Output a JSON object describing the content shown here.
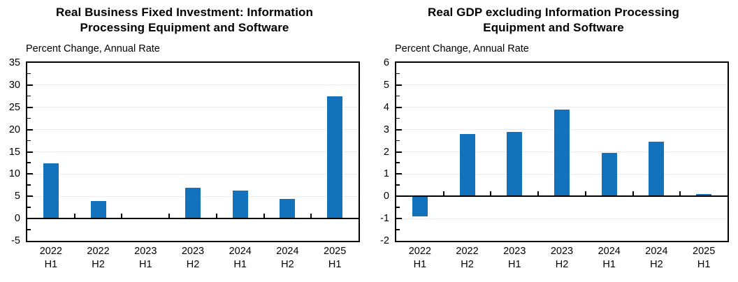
{
  "chart_data": [
    {
      "type": "bar",
      "title": "Real Business Fixed Investment: Information Processing Equipment and Software",
      "subtitle": "Percent Change, Annual Rate",
      "categories": [
        "2022 H1",
        "2022 H2",
        "2023 H1",
        "2023 H2",
        "2024 H1",
        "2024 H2",
        "2025 H1"
      ],
      "values": [
        12.4,
        3.9,
        0.0,
        7.0,
        6.3,
        4.4,
        27.4
      ],
      "xlabel": "",
      "ylabel": "",
      "ylim": [
        -5,
        35
      ],
      "ytick_step": 5,
      "minor_tick_step": 2.5,
      "grid": true,
      "legend": "none",
      "bar_color": "#1272bc",
      "axis_color": "#000000",
      "grid_color": "#ebebeb"
    },
    {
      "type": "bar",
      "title": "Real GDP excluding Information Processing Equipment and Software",
      "subtitle": "Percent Change, Annual Rate",
      "categories": [
        "2022 H1",
        "2022 H2",
        "2023 H1",
        "2023 H2",
        "2024 H1",
        "2024 H2",
        "2025 H1"
      ],
      "values": [
        -0.9,
        2.8,
        2.9,
        3.9,
        1.95,
        2.45,
        0.1
      ],
      "xlabel": "",
      "ylabel": "",
      "ylim": [
        -2,
        6
      ],
      "ytick_step": 1,
      "minor_tick_step": 0.5,
      "grid": true,
      "legend": "none",
      "bar_color": "#1272bc",
      "axis_color": "#000000",
      "grid_color": "#ebebeb"
    }
  ]
}
